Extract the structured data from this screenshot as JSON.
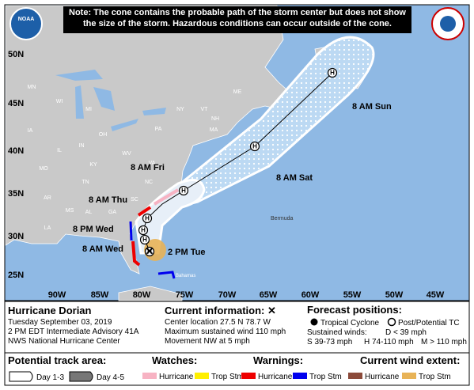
{
  "note": "Note: The cone contains the probable path of the storm center but does not show the size of the storm. Hazardous conditions can occur outside of the cone.",
  "map": {
    "lat_labels": [
      "50N",
      "45N",
      "40N",
      "35N",
      "30N",
      "25N"
    ],
    "lon_labels": [
      "90W",
      "85W",
      "80W",
      "75W",
      "70W",
      "65W",
      "60W",
      "55W",
      "50W",
      "45W"
    ],
    "forecast_labels": [
      "8 AM Sun",
      "8 AM Sat",
      "8 AM Fri",
      "8 AM Thu",
      "8 PM Wed",
      "8 AM Wed",
      "2 PM Tue"
    ],
    "marker_letter": "H",
    "places": [
      "Bermuda",
      "Bahamas"
    ],
    "states": [
      "MN",
      "WI",
      "MI",
      "IA",
      "IL",
      "IN",
      "OH",
      "PA",
      "NY",
      "VT",
      "NH",
      "ME",
      "MA",
      "MO",
      "KY",
      "WV",
      "VA",
      "TN",
      "NC",
      "AR",
      "SC",
      "MS",
      "AL",
      "GA",
      "LA"
    ],
    "logo": "NOAA"
  },
  "legend": {
    "storm": {
      "name": "Hurricane Dorian",
      "date": "Tuesday September 03, 2019",
      "advisory": "2 PM EDT Intermediate Advisory 41A",
      "agency": "NWS National Hurricane Center"
    },
    "current": {
      "title": "Current information: ✕",
      "location": "Center location 27.5 N 78.7 W",
      "wind": "Maximum sustained wind 110 mph",
      "movement": "Movement NW at 5 mph"
    },
    "forecast": {
      "title": "Forecast positions:",
      "tropical": "Tropical Cyclone",
      "post": "Post/Potential TC",
      "winds_title": "Sustained winds:",
      "d": "D < 39 mph",
      "s": "S 39-73 mph",
      "h": "H 74-110 mph",
      "m": "M > 110 mph"
    },
    "track": {
      "title": "Potential track area:",
      "day13": "Day 1-3",
      "day45": "Day 4-5"
    },
    "watches": {
      "title": "Watches:",
      "hurricane": "Hurricane",
      "tropstm": "Trop Stm"
    },
    "warnings": {
      "title": "Warnings:",
      "hurricane": "Hurricane",
      "tropstm": "Trop Stm"
    },
    "wind_extent": {
      "title": "Current wind extent:",
      "hurricane": "Hurricane",
      "tropstm": "Trop Stm"
    }
  }
}
